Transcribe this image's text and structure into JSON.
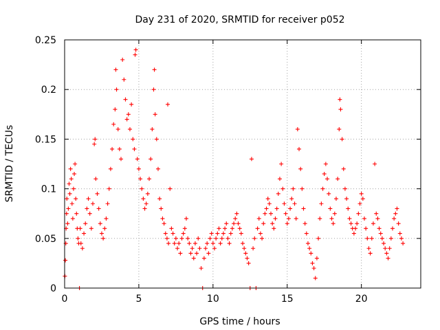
{
  "chart_data": {
    "type": "scatter",
    "title": "Day 231 of 2020, SRMTID for receiver p052",
    "xlabel": "GPS time / hours",
    "ylabel": "SRMTID / TECUs",
    "xlim": [
      0,
      24
    ],
    "ylim": [
      0,
      0.25
    ],
    "xticks": [
      0,
      5,
      10,
      15,
      20
    ],
    "xtick_labels": [
      "0",
      "5",
      "10",
      "15",
      "20"
    ],
    "yticks": [
      0,
      0.05,
      0.1,
      0.15,
      0.2,
      0.25
    ],
    "ytick_labels": [
      "0",
      "0.05",
      "0.1",
      "0.15",
      "0.2",
      "0.25"
    ],
    "grid": true,
    "marker": "+",
    "color": "#ff0000",
    "series": [
      {
        "name": "SRMTID",
        "points": [
          [
            0.02,
            0.012
          ],
          [
            0.05,
            0.028
          ],
          [
            0.08,
            0.045
          ],
          [
            0.1,
            0.06
          ],
          [
            0.13,
            0.075
          ],
          [
            0.15,
            0.09
          ],
          [
            0.2,
            0.065
          ],
          [
            0.25,
            0.08
          ],
          [
            0.3,
            0.105
          ],
          [
            0.35,
            0.095
          ],
          [
            0.4,
            0.12
          ],
          [
            0.45,
            0.11
          ],
          [
            0.5,
            0.085
          ],
          [
            0.55,
            0.07
          ],
          [
            0.6,
            0.1
          ],
          [
            0.65,
            0.115
          ],
          [
            0.7,
            0.125
          ],
          [
            0.75,
            0.09
          ],
          [
            0.8,
            0.075
          ],
          [
            0.85,
            0.06
          ],
          [
            0.9,
            0.05
          ],
          [
            0.95,
            0.045
          ],
          [
            1.0,
            0.0
          ],
          [
            1.05,
            0.06
          ],
          [
            1.1,
            0.045
          ],
          [
            1.2,
            0.04
          ],
          [
            1.3,
            0.055
          ],
          [
            1.4,
            0.065
          ],
          [
            1.5,
            0.08
          ],
          [
            1.6,
            0.09
          ],
          [
            1.7,
            0.075
          ],
          [
            1.8,
            0.06
          ],
          [
            1.9,
            0.085
          ],
          [
            2.0,
            0.145
          ],
          [
            2.05,
            0.15
          ],
          [
            2.1,
            0.11
          ],
          [
            2.2,
            0.095
          ],
          [
            2.3,
            0.08
          ],
          [
            2.4,
            0.065
          ],
          [
            2.5,
            0.055
          ],
          [
            2.6,
            0.05
          ],
          [
            2.7,
            0.06
          ],
          [
            2.8,
            0.07
          ],
          [
            2.9,
            0.085
          ],
          [
            3.0,
            0.1
          ],
          [
            3.1,
            0.12
          ],
          [
            3.2,
            0.14
          ],
          [
            3.3,
            0.165
          ],
          [
            3.4,
            0.18
          ],
          [
            3.45,
            0.22
          ],
          [
            3.5,
            0.2
          ],
          [
            3.6,
            0.16
          ],
          [
            3.7,
            0.14
          ],
          [
            3.8,
            0.13
          ],
          [
            3.9,
            0.23
          ],
          [
            4.0,
            0.21
          ],
          [
            4.1,
            0.19
          ],
          [
            4.2,
            0.17
          ],
          [
            4.3,
            0.175
          ],
          [
            4.4,
            0.16
          ],
          [
            4.5,
            0.185
          ],
          [
            4.6,
            0.15
          ],
          [
            4.7,
            0.14
          ],
          [
            4.75,
            0.235
          ],
          [
            4.8,
            0.24
          ],
          [
            4.9,
            0.13
          ],
          [
            5.0,
            0.12
          ],
          [
            5.1,
            0.11
          ],
          [
            5.2,
            0.1
          ],
          [
            5.3,
            0.09
          ],
          [
            5.4,
            0.08
          ],
          [
            5.5,
            0.085
          ],
          [
            5.6,
            0.095
          ],
          [
            5.7,
            0.11
          ],
          [
            5.8,
            0.13
          ],
          [
            5.9,
            0.16
          ],
          [
            6.0,
            0.2
          ],
          [
            6.05,
            0.22
          ],
          [
            6.1,
            0.175
          ],
          [
            6.2,
            0.15
          ],
          [
            6.3,
            0.12
          ],
          [
            6.4,
            0.09
          ],
          [
            6.5,
            0.08
          ],
          [
            6.6,
            0.07
          ],
          [
            6.7,
            0.065
          ],
          [
            6.8,
            0.055
          ],
          [
            6.9,
            0.05
          ],
          [
            6.95,
            0.185
          ],
          [
            7.0,
            0.045
          ],
          [
            7.1,
            0.1
          ],
          [
            7.2,
            0.06
          ],
          [
            7.3,
            0.055
          ],
          [
            7.4,
            0.045
          ],
          [
            7.5,
            0.05
          ],
          [
            7.6,
            0.04
          ],
          [
            7.7,
            0.045
          ],
          [
            7.8,
            0.035
          ],
          [
            7.9,
            0.05
          ],
          [
            8.0,
            0.055
          ],
          [
            8.1,
            0.06
          ],
          [
            8.2,
            0.07
          ],
          [
            8.3,
            0.05
          ],
          [
            8.4,
            0.045
          ],
          [
            8.5,
            0.035
          ],
          [
            8.6,
            0.04
          ],
          [
            8.7,
            0.03
          ],
          [
            8.8,
            0.045
          ],
          [
            8.9,
            0.035
          ],
          [
            9.0,
            0.05
          ],
          [
            9.1,
            0.04
          ],
          [
            9.2,
            0.02
          ],
          [
            9.3,
            0.0
          ],
          [
            9.4,
            0.03
          ],
          [
            9.5,
            0.04
          ],
          [
            9.6,
            0.045
          ],
          [
            9.7,
            0.035
          ],
          [
            9.8,
            0.05
          ],
          [
            9.9,
            0.055
          ],
          [
            10.0,
            0.045
          ],
          [
            10.1,
            0.04
          ],
          [
            10.2,
            0.05
          ],
          [
            10.3,
            0.055
          ],
          [
            10.4,
            0.06
          ],
          [
            10.5,
            0.045
          ],
          [
            10.6,
            0.05
          ],
          [
            10.7,
            0.055
          ],
          [
            10.8,
            0.06
          ],
          [
            10.9,
            0.065
          ],
          [
            11.0,
            0.05
          ],
          [
            11.1,
            0.045
          ],
          [
            11.2,
            0.055
          ],
          [
            11.3,
            0.06
          ],
          [
            11.4,
            0.065
          ],
          [
            11.5,
            0.07
          ],
          [
            11.6,
            0.075
          ],
          [
            11.7,
            0.065
          ],
          [
            11.8,
            0.06
          ],
          [
            11.9,
            0.055
          ],
          [
            12.0,
            0.045
          ],
          [
            12.1,
            0.04
          ],
          [
            12.2,
            0.035
          ],
          [
            12.3,
            0.03
          ],
          [
            12.4,
            0.025
          ],
          [
            12.5,
            0.0
          ],
          [
            12.6,
            0.13
          ],
          [
            12.7,
            0.04
          ],
          [
            12.8,
            0.05
          ],
          [
            12.9,
            0.0
          ],
          [
            13.0,
            0.06
          ],
          [
            13.1,
            0.07
          ],
          [
            13.2,
            0.055
          ],
          [
            13.3,
            0.05
          ],
          [
            13.4,
            0.065
          ],
          [
            13.5,
            0.075
          ],
          [
            13.6,
            0.08
          ],
          [
            13.7,
            0.09
          ],
          [
            13.8,
            0.085
          ],
          [
            13.9,
            0.075
          ],
          [
            14.0,
            0.065
          ],
          [
            14.1,
            0.06
          ],
          [
            14.2,
            0.07
          ],
          [
            14.3,
            0.08
          ],
          [
            14.4,
            0.095
          ],
          [
            14.5,
            0.11
          ],
          [
            14.6,
            0.125
          ],
          [
            14.7,
            0.1
          ],
          [
            14.8,
            0.085
          ],
          [
            14.9,
            0.075
          ],
          [
            15.0,
            0.065
          ],
          [
            15.1,
            0.07
          ],
          [
            15.2,
            0.08
          ],
          [
            15.3,
            0.09
          ],
          [
            15.4,
            0.1
          ],
          [
            15.5,
            0.085
          ],
          [
            15.6,
            0.07
          ],
          [
            15.7,
            0.16
          ],
          [
            15.8,
            0.14
          ],
          [
            15.9,
            0.12
          ],
          [
            16.0,
            0.1
          ],
          [
            16.1,
            0.08
          ],
          [
            16.2,
            0.065
          ],
          [
            16.3,
            0.055
          ],
          [
            16.4,
            0.045
          ],
          [
            16.5,
            0.04
          ],
          [
            16.6,
            0.035
          ],
          [
            16.7,
            0.025
          ],
          [
            16.8,
            0.02
          ],
          [
            16.9,
            0.01
          ],
          [
            17.0,
            0.03
          ],
          [
            17.1,
            0.05
          ],
          [
            17.2,
            0.07
          ],
          [
            17.3,
            0.085
          ],
          [
            17.4,
            0.1
          ],
          [
            17.5,
            0.115
          ],
          [
            17.6,
            0.125
          ],
          [
            17.7,
            0.11
          ],
          [
            17.8,
            0.095
          ],
          [
            17.9,
            0.08
          ],
          [
            18.0,
            0.07
          ],
          [
            18.1,
            0.065
          ],
          [
            18.2,
            0.075
          ],
          [
            18.3,
            0.09
          ],
          [
            18.4,
            0.11
          ],
          [
            18.5,
            0.16
          ],
          [
            18.55,
            0.19
          ],
          [
            18.6,
            0.18
          ],
          [
            18.7,
            0.15
          ],
          [
            18.8,
            0.12
          ],
          [
            18.9,
            0.1
          ],
          [
            19.0,
            0.09
          ],
          [
            19.1,
            0.08
          ],
          [
            19.2,
            0.07
          ],
          [
            19.3,
            0.065
          ],
          [
            19.4,
            0.06
          ],
          [
            19.5,
            0.055
          ],
          [
            19.6,
            0.06
          ],
          [
            19.7,
            0.065
          ],
          [
            19.8,
            0.075
          ],
          [
            19.9,
            0.085
          ],
          [
            20.0,
            0.095
          ],
          [
            20.1,
            0.09
          ],
          [
            20.2,
            0.07
          ],
          [
            20.3,
            0.06
          ],
          [
            20.4,
            0.05
          ],
          [
            20.5,
            0.04
          ],
          [
            20.6,
            0.035
          ],
          [
            20.7,
            0.05
          ],
          [
            20.8,
            0.065
          ],
          [
            20.9,
            0.125
          ],
          [
            21.0,
            0.075
          ],
          [
            21.1,
            0.07
          ],
          [
            21.2,
            0.06
          ],
          [
            21.3,
            0.055
          ],
          [
            21.4,
            0.05
          ],
          [
            21.5,
            0.045
          ],
          [
            21.6,
            0.04
          ],
          [
            21.7,
            0.035
          ],
          [
            21.8,
            0.03
          ],
          [
            21.9,
            0.04
          ],
          [
            22.0,
            0.05
          ],
          [
            22.1,
            0.06
          ],
          [
            22.2,
            0.07
          ],
          [
            22.3,
            0.075
          ],
          [
            22.4,
            0.08
          ],
          [
            22.5,
            0.065
          ],
          [
            22.6,
            0.055
          ],
          [
            22.7,
            0.05
          ],
          [
            22.8,
            0.045
          ]
        ]
      }
    ]
  }
}
